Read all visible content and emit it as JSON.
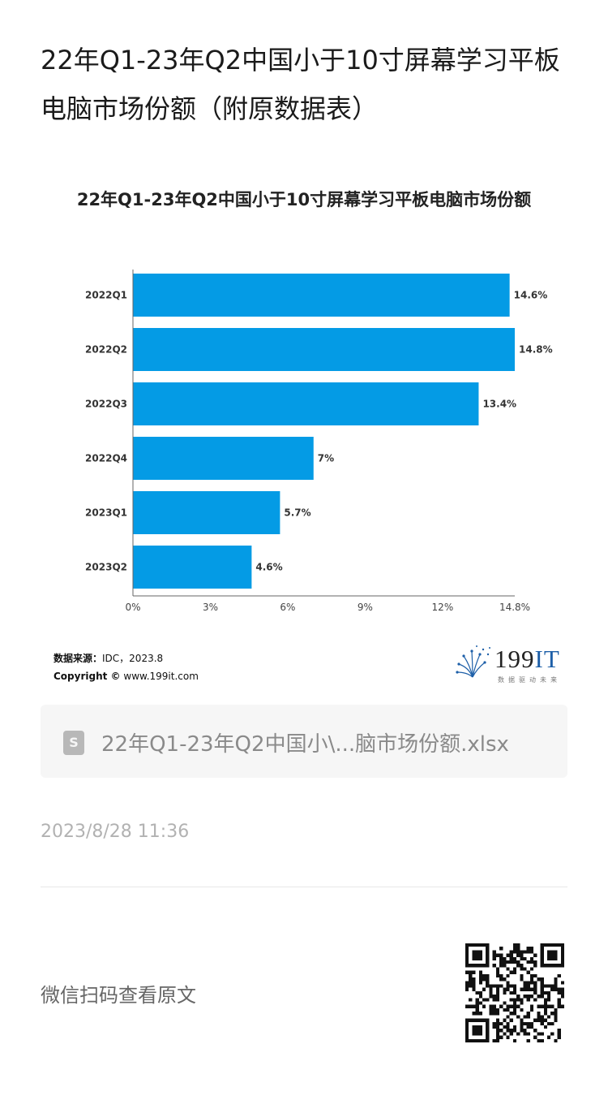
{
  "page": {
    "title": "22年Q1-23年Q2中国小于10寸屏幕学习平板电脑市场份额（附原数据表）"
  },
  "chart_data": {
    "type": "bar",
    "orientation": "horizontal",
    "title": "22年Q1-23年Q2中国小于10寸屏幕学习平板电脑市场份额",
    "categories": [
      "2022Q1",
      "2022Q2",
      "2022Q3",
      "2022Q4",
      "2023Q1",
      "2023Q2"
    ],
    "values": [
      14.6,
      14.8,
      13.4,
      7.0,
      5.7,
      4.6
    ],
    "value_labels": [
      "14.6%",
      "14.8%",
      "13.4%",
      "7%",
      "5.7%",
      "4.6%"
    ],
    "xlim": [
      0,
      14.8
    ],
    "x_ticks": [
      "0%",
      "3%",
      "6%",
      "9%",
      "12%",
      "14.8%"
    ],
    "x_tick_values": [
      0,
      3,
      6,
      9,
      12,
      14.8
    ],
    "xlabel": "",
    "ylabel": "",
    "grid": false,
    "bar_color": "#049be5"
  },
  "source": {
    "label": "数据来源：",
    "value": "IDC，2023.8",
    "copyright_label": "Copyright ©",
    "copyright_site": "www.199it.com"
  },
  "logo": {
    "text_num": "199",
    "text_it": "IT",
    "tagline": "数据驱动未来"
  },
  "file": {
    "icon": "spreadsheet-icon",
    "icon_letter": "S",
    "name": "22年Q1-23年Q2中国小\\...脑市场份额.xlsx"
  },
  "meta": {
    "timestamp": "2023/8/28 11:36",
    "wechat_prompt": "微信扫码查看原文"
  }
}
